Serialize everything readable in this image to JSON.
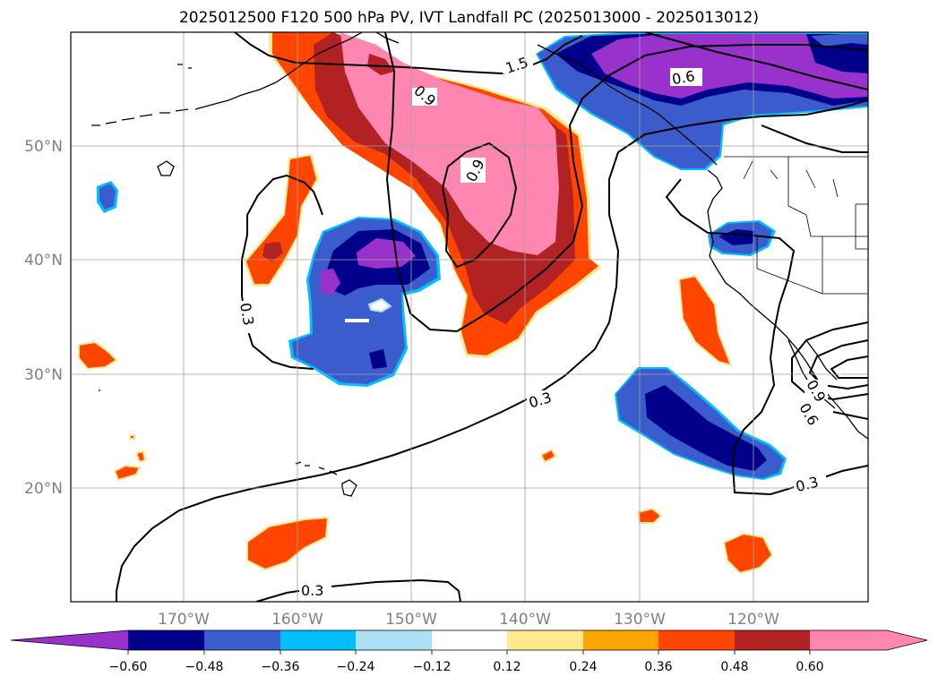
{
  "title": "2025012500 F120 500 hPa PV, IVT Landfall PC (2025013000 - 2025013012)",
  "map": {
    "lat_labels": [
      "50°N",
      "40°N",
      "30°N",
      "20°N"
    ],
    "lon_labels": [
      "170°W",
      "160°W",
      "150°W",
      "140°W",
      "130°W",
      "120°W"
    ],
    "contour_labels": [
      "1.5",
      "0.9",
      "0.9",
      "0.6",
      "0.3",
      "0.3",
      "0.3",
      "0.3",
      "0.6",
      "0.9"
    ]
  },
  "colorbar": {
    "ticks": [
      "−0.60",
      "−0.48",
      "−0.36",
      "−0.24",
      "−0.12",
      "0.12",
      "0.24",
      "0.36",
      "0.48",
      "0.60"
    ],
    "colors": {
      "lt_neg_060": "#9932CC",
      "neg_060_048": "#00008B",
      "neg_048_036": "#3A5CCC",
      "neg_036_024": "#00BFFF",
      "neg_024_012": "#ADDFF7",
      "neg_012_012": "#FFFFFF",
      "pos_012_024": "#FFE98F",
      "pos_024_036": "#FFA500",
      "pos_036_048": "#FF4500",
      "pos_048_060": "#B22222",
      "gt_060": "#FF86B0"
    }
  }
}
